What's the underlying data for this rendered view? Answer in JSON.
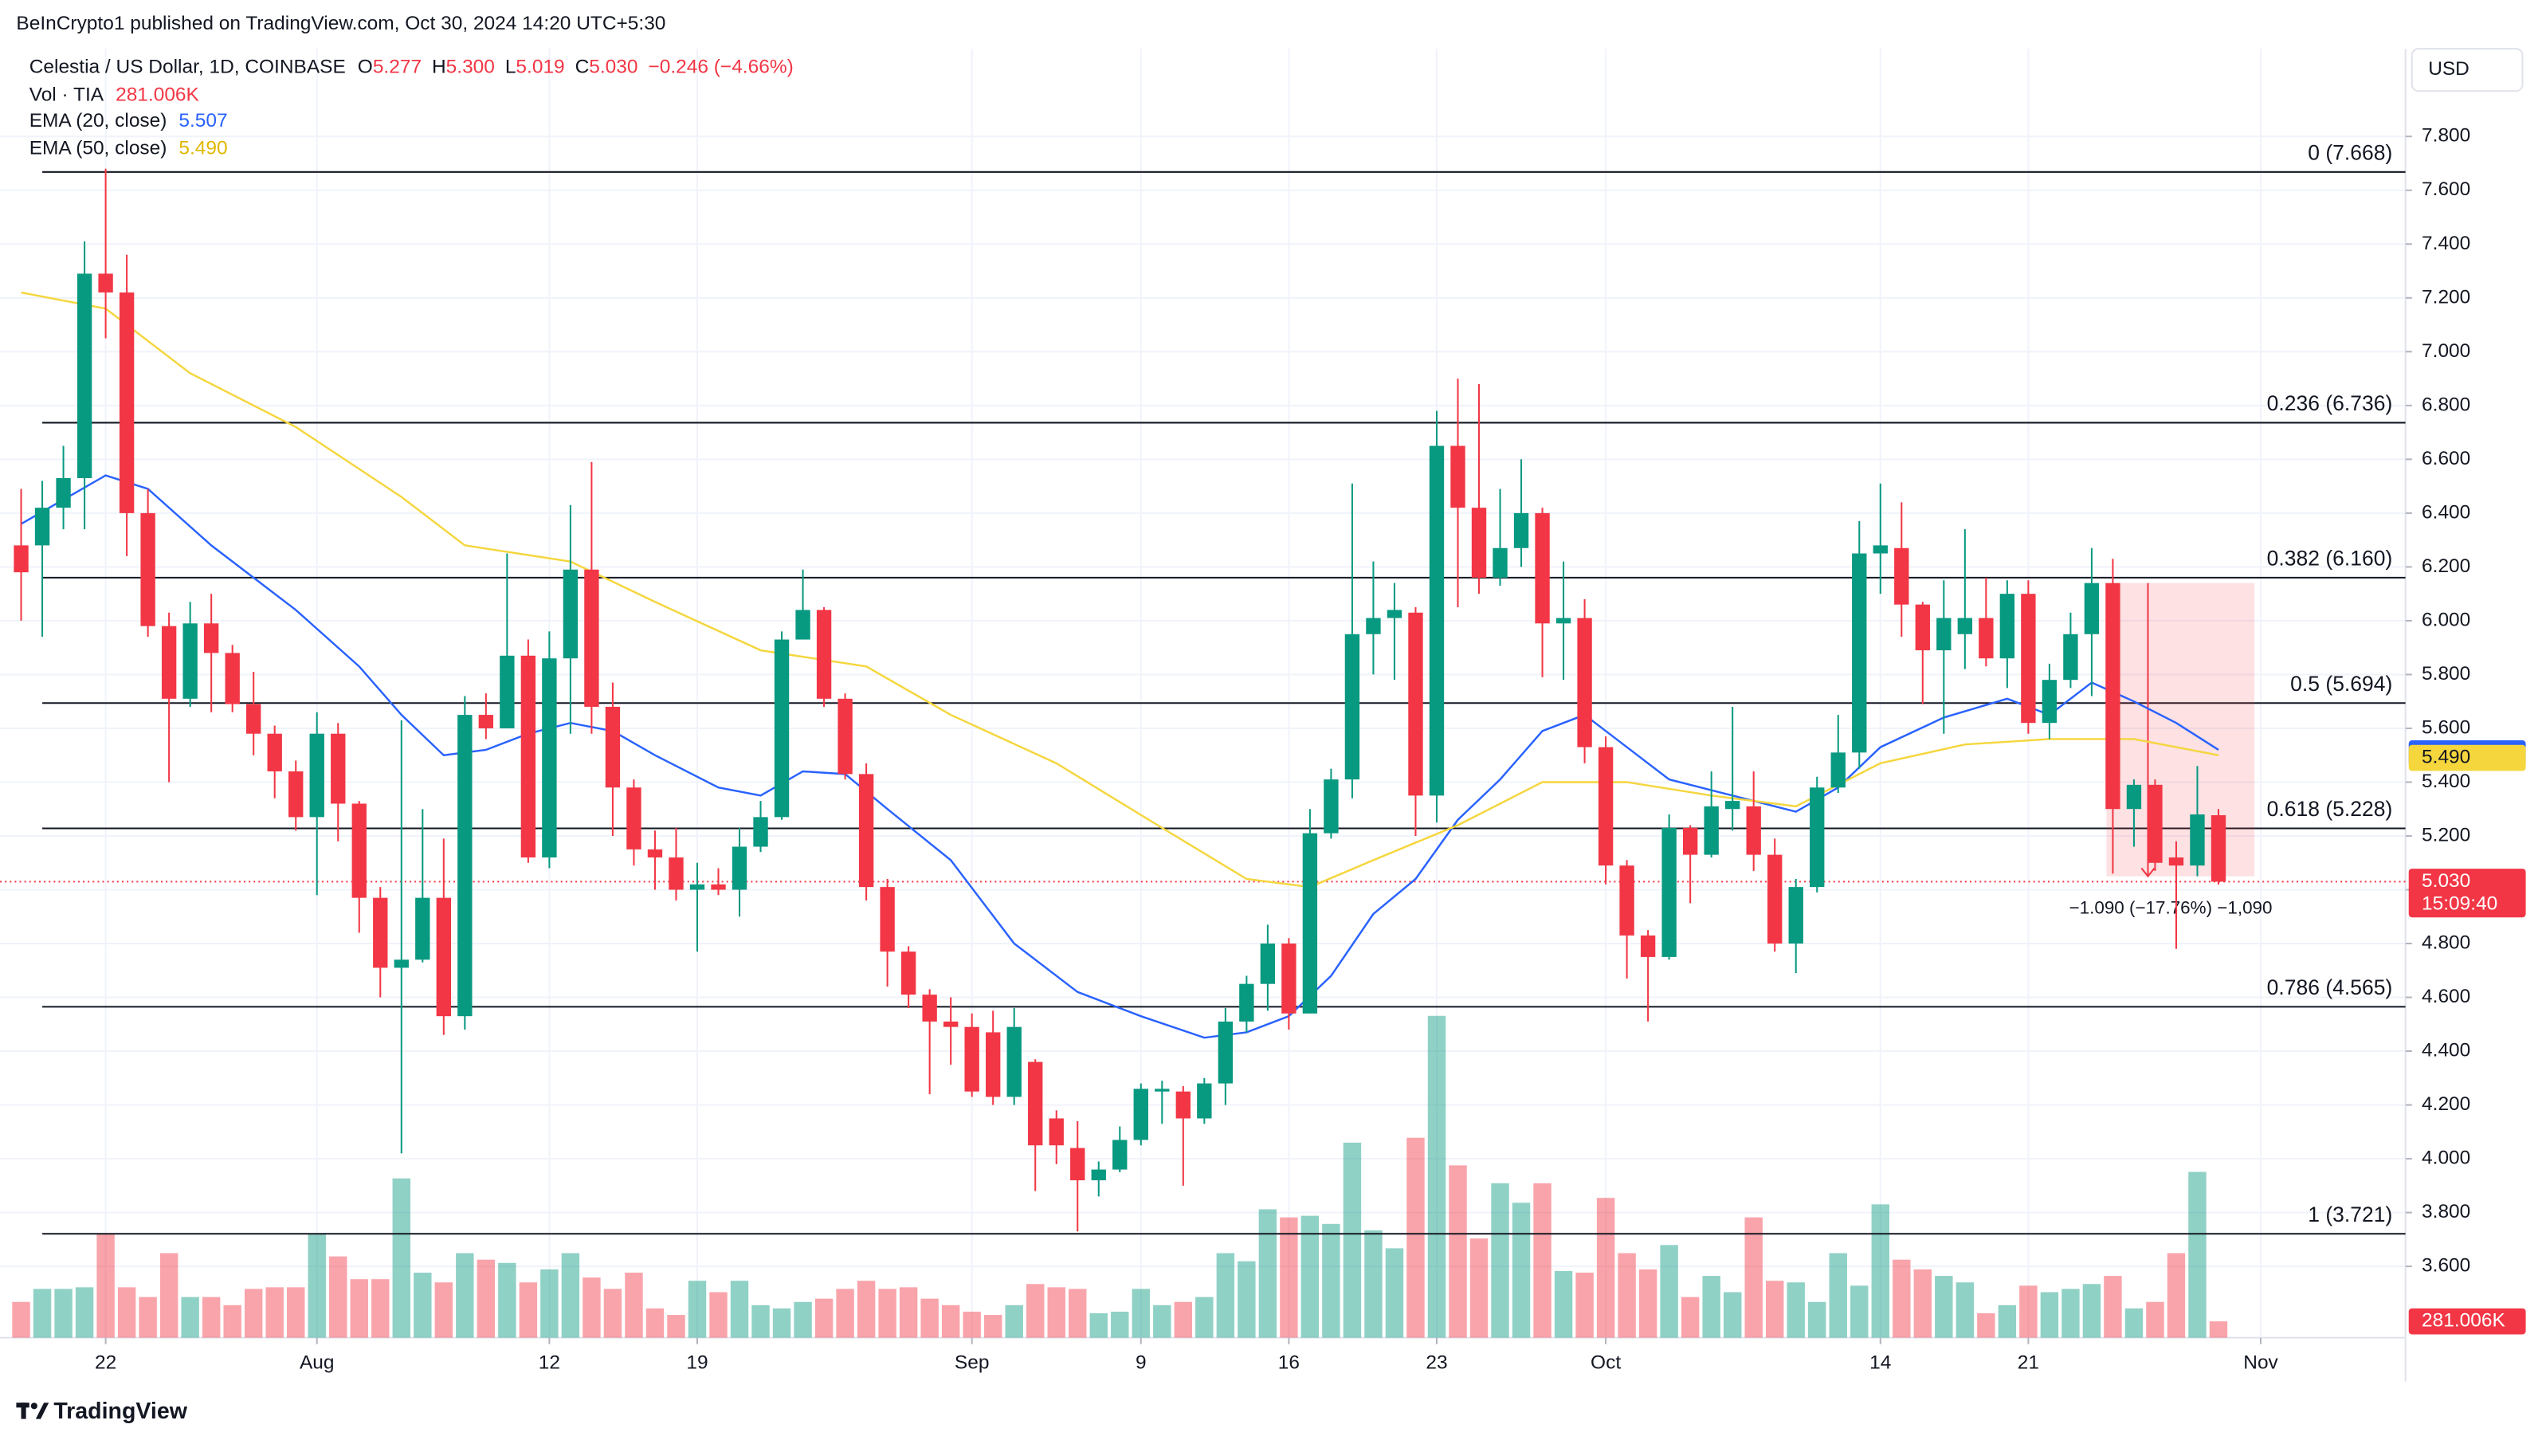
{
  "chart_data": {
    "type": "candlestick",
    "header": "BeInCrypto1 published on TradingView.com, Oct 30, 2024 14:20 UTC+5:30",
    "symbol": "Celestia / US Dollar, 1D, COINBASE",
    "ohlc": [
      {
        "key": "O",
        "value": "5.277"
      },
      {
        "key": "H",
        "value": "5.300"
      },
      {
        "key": "L",
        "value": "5.019"
      },
      {
        "key": "C",
        "value": "5.030"
      }
    ],
    "change": "−0.246 (−4.66%)",
    "volume_name": "Vol · TIA",
    "volume_last_label": "281.006K",
    "currency": "USD",
    "countdown": "15:09:40",
    "brand": "TradingView",
    "up_color": "#089981",
    "down_color": "#f23645",
    "grid": true,
    "xlim": [
      -1,
      112.85
    ],
    "ylim": [
      3.335,
      8.126
    ],
    "xticks": [
      {
        "value": 4,
        "label": "22"
      },
      {
        "value": 14,
        "label": "Aug"
      },
      {
        "value": 25,
        "label": "12"
      },
      {
        "value": 32,
        "label": "19"
      },
      {
        "value": 45,
        "label": "Sep"
      },
      {
        "value": 53,
        "label": "9"
      },
      {
        "value": 60,
        "label": "16"
      },
      {
        "value": 67,
        "label": "23"
      },
      {
        "value": 75,
        "label": "Oct"
      },
      {
        "value": 88,
        "label": "14"
      },
      {
        "value": 95,
        "label": "21"
      },
      {
        "value": 106,
        "label": "Nov"
      }
    ],
    "yticks": [
      {
        "value": 3.6,
        "label": "3.600"
      },
      {
        "value": 3.8,
        "label": "3.800"
      },
      {
        "value": 4.0,
        "label": "4.000"
      },
      {
        "value": 4.2,
        "label": "4.200"
      },
      {
        "value": 4.4,
        "label": "4.400"
      },
      {
        "value": 4.6,
        "label": "4.600"
      },
      {
        "value": 4.8,
        "label": "4.800"
      },
      {
        "value": 5.0,
        "label": "5.000"
      },
      {
        "value": 5.2,
        "label": "5.200"
      },
      {
        "value": 5.4,
        "label": "5.400"
      },
      {
        "value": 5.6,
        "label": "5.600"
      },
      {
        "value": 5.8,
        "label": "5.800"
      },
      {
        "value": 6.0,
        "label": "6.000"
      },
      {
        "value": 6.2,
        "label": "6.200"
      },
      {
        "value": 6.4,
        "label": "6.400"
      },
      {
        "value": 6.6,
        "label": "6.600"
      },
      {
        "value": 6.8,
        "label": "6.800"
      },
      {
        "value": 7.0,
        "label": "7.000"
      },
      {
        "value": 7.2,
        "label": "7.200"
      },
      {
        "value": 7.4,
        "label": "7.400"
      },
      {
        "value": 7.6,
        "label": "7.600"
      },
      {
        "value": 7.8,
        "label": "7.800"
      }
    ],
    "open": [
      6.28,
      6.28,
      6.42,
      6.53,
      7.29,
      7.22,
      6.4,
      5.98,
      5.71,
      5.99,
      5.88,
      5.69,
      5.58,
      5.44,
      5.27,
      5.58,
      5.32,
      4.97,
      4.71,
      4.74,
      4.97,
      4.53,
      5.65,
      5.6,
      5.87,
      5.12,
      5.86,
      6.19,
      5.68,
      5.38,
      5.15,
      5.12,
      5.0,
      5.02,
      5.0,
      5.16,
      5.27,
      5.93,
      6.04,
      5.71,
      5.43,
      5.01,
      4.77,
      4.61,
      4.51,
      4.49,
      4.47,
      4.23,
      4.36,
      4.15,
      4.04,
      3.92,
      3.96,
      4.07,
      4.25,
      4.25,
      4.15,
      4.28,
      4.51,
      4.65,
      4.8,
      4.54,
      5.21,
      5.41,
      5.95,
      6.01,
      6.03,
      5.35,
      6.65,
      6.42,
      6.16,
      6.27,
      6.4,
      5.99,
      6.01,
      5.53,
      5.09,
      4.83,
      4.75,
      5.23,
      5.13,
      5.3,
      5.31,
      5.13,
      4.8,
      5.01,
      5.38,
      5.51,
      6.25,
      6.27,
      6.06,
      5.89,
      5.95,
      6.01,
      5.86,
      6.1,
      5.62,
      5.78,
      5.95,
      6.14,
      5.3,
      5.39,
      5.12,
      5.09,
      5.277
    ],
    "high": [
      6.49,
      6.52,
      6.65,
      7.41,
      7.68,
      7.36,
      6.49,
      6.03,
      6.07,
      6.1,
      5.91,
      5.81,
      5.61,
      5.48,
      5.66,
      5.62,
      5.33,
      5.01,
      5.63,
      5.3,
      5.19,
      5.72,
      5.73,
      6.25,
      5.93,
      5.96,
      6.43,
      6.59,
      5.77,
      5.41,
      5.22,
      5.23,
      5.1,
      5.08,
      5.23,
      5.33,
      5.96,
      6.19,
      6.05,
      5.73,
      5.47,
      5.04,
      4.79,
      4.63,
      4.6,
      4.54,
      4.55,
      4.56,
      4.37,
      4.18,
      4.14,
      3.99,
      4.12,
      4.28,
      4.29,
      4.27,
      4.3,
      4.56,
      4.68,
      4.87,
      4.82,
      5.3,
      5.45,
      6.51,
      6.22,
      6.14,
      6.05,
      6.78,
      6.9,
      6.88,
      6.49,
      6.6,
      6.42,
      6.22,
      6.08,
      5.57,
      5.11,
      4.85,
      5.28,
      5.24,
      5.44,
      5.68,
      5.44,
      5.19,
      5.04,
      5.42,
      5.65,
      6.37,
      6.51,
      6.44,
      6.07,
      6.15,
      6.34,
      6.16,
      6.15,
      6.15,
      5.84,
      6.03,
      6.27,
      6.23,
      5.41,
      5.41,
      5.18,
      5.46,
      5.3
    ],
    "low": [
      6.0,
      5.94,
      6.34,
      6.34,
      7.05,
      6.24,
      5.94,
      5.4,
      5.68,
      5.66,
      5.66,
      5.5,
      5.34,
      5.22,
      4.98,
      5.18,
      4.84,
      4.6,
      4.02,
      4.73,
      4.46,
      4.48,
      5.56,
      5.6,
      5.1,
      5.08,
      5.58,
      5.58,
      5.2,
      5.09,
      5.0,
      4.96,
      4.77,
      4.98,
      4.9,
      5.14,
      5.26,
      5.93,
      5.68,
      5.41,
      4.96,
      4.64,
      4.56,
      4.24,
      4.35,
      4.23,
      4.2,
      4.2,
      3.88,
      3.98,
      3.73,
      3.86,
      3.95,
      4.05,
      4.13,
      3.9,
      4.13,
      4.2,
      4.47,
      4.55,
      4.48,
      4.54,
      5.19,
      5.34,
      5.8,
      5.78,
      5.2,
      5.25,
      6.05,
      6.1,
      6.13,
      6.2,
      5.79,
      5.78,
      5.47,
      5.02,
      4.67,
      4.51,
      4.74,
      4.95,
      5.12,
      5.22,
      5.07,
      4.77,
      4.69,
      4.99,
      5.36,
      5.45,
      6.1,
      5.94,
      5.69,
      5.58,
      5.82,
      5.83,
      5.75,
      5.58,
      5.56,
      5.75,
      5.72,
      5.06,
      5.16,
      5.07,
      4.78,
      5.05,
      5.019
    ],
    "close": [
      6.18,
      6.42,
      6.53,
      7.29,
      7.22,
      6.4,
      5.98,
      5.71,
      5.99,
      5.88,
      5.69,
      5.58,
      5.44,
      5.27,
      5.58,
      5.32,
      4.97,
      4.71,
      4.74,
      4.97,
      4.53,
      5.65,
      5.6,
      5.87,
      5.12,
      5.86,
      6.19,
      5.68,
      5.38,
      5.15,
      5.12,
      5.0,
      5.02,
      5.0,
      5.16,
      5.27,
      5.93,
      6.04,
      5.71,
      5.43,
      5.01,
      4.77,
      4.61,
      4.51,
      4.49,
      4.25,
      4.23,
      4.49,
      4.05,
      4.05,
      3.92,
      3.96,
      4.07,
      4.26,
      4.26,
      4.15,
      4.28,
      4.51,
      4.65,
      4.8,
      4.54,
      5.21,
      5.41,
      5.95,
      6.01,
      6.04,
      5.35,
      6.65,
      6.42,
      6.16,
      6.27,
      6.4,
      5.99,
      6.01,
      5.53,
      5.09,
      4.83,
      4.75,
      5.23,
      5.13,
      5.31,
      5.33,
      5.13,
      4.8,
      5.01,
      5.38,
      5.51,
      6.25,
      6.28,
      6.06,
      5.89,
      6.01,
      6.01,
      5.86,
      6.1,
      5.62,
      5.78,
      5.95,
      6.14,
      5.3,
      5.39,
      5.1,
      5.09,
      5.28,
      5.03
    ],
    "volume": [
      616,
      840,
      840,
      868,
      1792,
      868,
      700,
      1456,
      700,
      700,
      560,
      840,
      868,
      868,
      1792,
      1400,
      1008,
      1008,
      2744,
      1120,
      952,
      1456,
      1344,
      1288,
      952,
      1176,
      1456,
      1036,
      840,
      1120,
      504,
      392,
      980,
      784,
      980,
      560,
      504,
      616,
      672,
      840,
      980,
      840,
      868,
      672,
      560,
      448,
      392,
      560,
      924,
      868,
      840,
      420,
      448,
      840,
      560,
      616,
      700,
      1456,
      1316,
      2212,
      2072,
      2100,
      1960,
      3360,
      1848,
      1540,
      3444,
      5544,
      2968,
      1708,
      2660,
      2324,
      2660,
      1148,
      1120,
      2408,
      1456,
      1176,
      1596,
      700,
      1064,
      784,
      2072,
      980,
      952,
      616,
      1456,
      896,
      2296,
      1344,
      1176,
      1064,
      952,
      420,
      560,
      896,
      784,
      840,
      924,
      1064,
      504,
      616,
      1456,
      2856,
      281.006
    ],
    "series": [
      {
        "name": "EMA (20, close)",
        "color": "#2962ff",
        "last": {
          "value": 5.507,
          "label": "5.507"
        },
        "x": [
          0,
          4,
          6,
          9,
          13,
          16,
          18,
          20,
          22,
          24,
          26,
          28,
          30,
          33,
          35,
          37,
          39,
          41,
          44,
          47,
          50,
          53,
          56,
          58,
          60,
          62,
          64,
          66,
          68,
          70,
          72,
          74,
          76,
          78,
          81,
          84,
          86,
          88,
          91,
          94,
          96,
          98,
          100,
          102,
          104
        ],
        "values": [
          6.36,
          6.54,
          6.49,
          6.28,
          6.04,
          5.83,
          5.65,
          5.5,
          5.52,
          5.58,
          5.62,
          5.59,
          5.5,
          5.38,
          5.35,
          5.44,
          5.43,
          5.3,
          5.11,
          4.8,
          4.62,
          4.53,
          4.45,
          4.47,
          4.53,
          4.68,
          4.91,
          5.04,
          5.26,
          5.41,
          5.59,
          5.65,
          5.53,
          5.41,
          5.35,
          5.29,
          5.38,
          5.53,
          5.64,
          5.71,
          5.65,
          5.77,
          5.7,
          5.62,
          5.52
        ]
      },
      {
        "name": "EMA (50, close)",
        "color": "#f5d63d",
        "last": {
          "value": 5.49,
          "label": "5.490"
        },
        "x": [
          0,
          4,
          8,
          13,
          18,
          21,
          26,
          30,
          35,
          40,
          44,
          49,
          54,
          58,
          61,
          64,
          68,
          72,
          76,
          80,
          84,
          88,
          92,
          96,
          100,
          104
        ],
        "values": [
          7.22,
          7.16,
          6.92,
          6.72,
          6.46,
          6.28,
          6.22,
          6.07,
          5.89,
          5.83,
          5.65,
          5.47,
          5.23,
          5.04,
          5.01,
          5.11,
          5.24,
          5.4,
          5.4,
          5.35,
          5.31,
          5.47,
          5.54,
          5.56,
          5.56,
          5.5
        ]
      }
    ],
    "last_price": {
      "value": 5.03,
      "label": "5.030"
    },
    "levels": [
      {
        "label": "0 (7.668)",
        "value": 7.668
      },
      {
        "label": "0.236 (6.736)",
        "value": 6.736
      },
      {
        "label": "0.382 (6.160)",
        "value": 6.16
      },
      {
        "label": "0.5 (5.694)",
        "value": 5.694
      },
      {
        "label": "0.618 (5.228)",
        "value": 5.228
      },
      {
        "label": "0.786 (4.565)",
        "value": 4.565
      },
      {
        "label": "1 (3.721)",
        "value": 3.721
      }
    ],
    "measure": {
      "label": "−1.090 (−17.76%) −1,090",
      "top": 6.14,
      "bottom": 5.05,
      "start": 98.7,
      "end": 105.7
    }
  }
}
